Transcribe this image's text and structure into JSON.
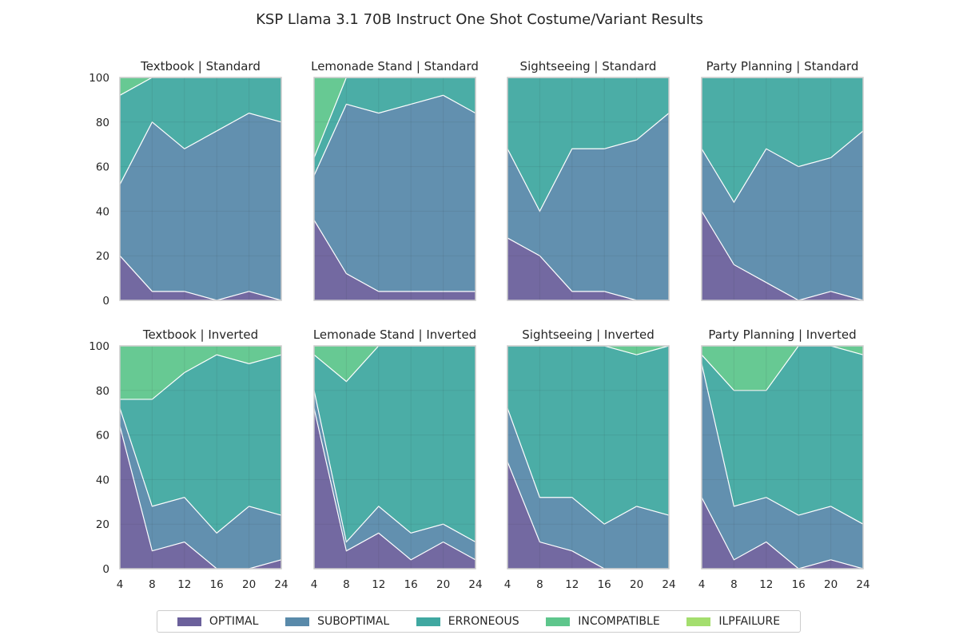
{
  "chart_data": {
    "type": "area",
    "title": "KSP Llama 3.1 70B Instruct One Shot Costume/Variant Results",
    "x": [
      4,
      8,
      12,
      16,
      20,
      24
    ],
    "ylim": [
      0,
      100
    ],
    "yticks": [
      0,
      20,
      40,
      60,
      80,
      100
    ],
    "xticks": [
      4,
      8,
      12,
      16,
      20,
      24
    ],
    "grid": true,
    "legend_position": "bottom-center",
    "series_names": [
      "OPTIMAL",
      "SUBOPTIMAL",
      "ERRONEOUS",
      "INCOMPATIBLE",
      "ILPFAILURE"
    ],
    "colors": {
      "OPTIMAL": "#5b4f90",
      "SUBOPTIMAL": "#477da1",
      "ERRONEOUS": "#2b9f97",
      "INCOMPATIBLE": "#4cc080",
      "ILPFAILURE": "#9ada5e"
    },
    "panels": [
      {
        "title": "Textbook | Standard",
        "series": [
          {
            "name": "OPTIMAL",
            "values": [
              20,
              4,
              4,
              0,
              4,
              0
            ]
          },
          {
            "name": "SUBOPTIMAL",
            "values": [
              32,
              76,
              64,
              76,
              80,
              80
            ]
          },
          {
            "name": "ERRONEOUS",
            "values": [
              40,
              20,
              32,
              24,
              16,
              20
            ]
          },
          {
            "name": "INCOMPATIBLE",
            "values": [
              8,
              0,
              0,
              0,
              0,
              0
            ]
          },
          {
            "name": "ILPFAILURE",
            "values": [
              0,
              0,
              0,
              0,
              0,
              0
            ]
          }
        ]
      },
      {
        "title": "Lemonade Stand | Standard",
        "series": [
          {
            "name": "OPTIMAL",
            "values": [
              36,
              12,
              4,
              4,
              4,
              4
            ]
          },
          {
            "name": "SUBOPTIMAL",
            "values": [
              20,
              76,
              80,
              84,
              88,
              80
            ]
          },
          {
            "name": "ERRONEOUS",
            "values": [
              8,
              12,
              16,
              12,
              8,
              16
            ]
          },
          {
            "name": "INCOMPATIBLE",
            "values": [
              36,
              0,
              0,
              0,
              0,
              0
            ]
          },
          {
            "name": "ILPFAILURE",
            "values": [
              0,
              0,
              0,
              0,
              0,
              0
            ]
          }
        ]
      },
      {
        "title": "Sightseeing | Standard",
        "series": [
          {
            "name": "OPTIMAL",
            "values": [
              28,
              20,
              4,
              4,
              0,
              0
            ]
          },
          {
            "name": "SUBOPTIMAL",
            "values": [
              40,
              20,
              64,
              64,
              72,
              84
            ]
          },
          {
            "name": "ERRONEOUS",
            "values": [
              32,
              60,
              32,
              32,
              28,
              16
            ]
          },
          {
            "name": "INCOMPATIBLE",
            "values": [
              0,
              0,
              0,
              0,
              0,
              0
            ]
          },
          {
            "name": "ILPFAILURE",
            "values": [
              0,
              0,
              0,
              0,
              0,
              0
            ]
          }
        ]
      },
      {
        "title": "Party Planning | Standard",
        "series": [
          {
            "name": "OPTIMAL",
            "values": [
              40,
              16,
              8,
              0,
              4,
              0
            ]
          },
          {
            "name": "SUBOPTIMAL",
            "values": [
              28,
              28,
              60,
              60,
              60,
              76
            ]
          },
          {
            "name": "ERRONEOUS",
            "values": [
              32,
              56,
              32,
              40,
              36,
              24
            ]
          },
          {
            "name": "INCOMPATIBLE",
            "values": [
              0,
              0,
              0,
              0,
              0,
              0
            ]
          },
          {
            "name": "ILPFAILURE",
            "values": [
              0,
              0,
              0,
              0,
              0,
              0
            ]
          }
        ]
      },
      {
        "title": "Textbook | Inverted",
        "series": [
          {
            "name": "OPTIMAL",
            "values": [
              64,
              8,
              12,
              0,
              0,
              4
            ]
          },
          {
            "name": "SUBOPTIMAL",
            "values": [
              8,
              20,
              20,
              16,
              28,
              20
            ]
          },
          {
            "name": "ERRONEOUS",
            "values": [
              4,
              48,
              56,
              80,
              64,
              72
            ]
          },
          {
            "name": "INCOMPATIBLE",
            "values": [
              24,
              24,
              12,
              4,
              8,
              4
            ]
          },
          {
            "name": "ILPFAILURE",
            "values": [
              0,
              0,
              0,
              0,
              0,
              0
            ]
          }
        ]
      },
      {
        "title": "Lemonade Stand | Inverted",
        "series": [
          {
            "name": "OPTIMAL",
            "values": [
              72,
              8,
              16,
              4,
              12,
              4
            ]
          },
          {
            "name": "SUBOPTIMAL",
            "values": [
              8,
              4,
              12,
              12,
              8,
              8
            ]
          },
          {
            "name": "ERRONEOUS",
            "values": [
              16,
              72,
              72,
              84,
              80,
              88
            ]
          },
          {
            "name": "INCOMPATIBLE",
            "values": [
              4,
              16,
              0,
              0,
              0,
              0
            ]
          },
          {
            "name": "ILPFAILURE",
            "values": [
              0,
              0,
              0,
              0,
              0,
              0
            ]
          }
        ]
      },
      {
        "title": "Sightseeing | Inverted",
        "series": [
          {
            "name": "OPTIMAL",
            "values": [
              48,
              12,
              8,
              0,
              0,
              0
            ]
          },
          {
            "name": "SUBOPTIMAL",
            "values": [
              24,
              20,
              24,
              20,
              28,
              24
            ]
          },
          {
            "name": "ERRONEOUS",
            "values": [
              28,
              68,
              68,
              80,
              68,
              76
            ]
          },
          {
            "name": "INCOMPATIBLE",
            "values": [
              0,
              0,
              0,
              0,
              4,
              0
            ]
          },
          {
            "name": "ILPFAILURE",
            "values": [
              0,
              0,
              0,
              0,
              0,
              0
            ]
          }
        ]
      },
      {
        "title": "Party Planning | Inverted",
        "series": [
          {
            "name": "OPTIMAL",
            "values": [
              32,
              4,
              12,
              0,
              4,
              0
            ]
          },
          {
            "name": "SUBOPTIMAL",
            "values": [
              60,
              24,
              20,
              24,
              24,
              20
            ]
          },
          {
            "name": "ERRONEOUS",
            "values": [
              4,
              52,
              48,
              76,
              72,
              76
            ]
          },
          {
            "name": "INCOMPATIBLE",
            "values": [
              4,
              20,
              20,
              0,
              0,
              4
            ]
          },
          {
            "name": "ILPFAILURE",
            "values": [
              0,
              0,
              0,
              0,
              0,
              0
            ]
          }
        ]
      }
    ]
  }
}
